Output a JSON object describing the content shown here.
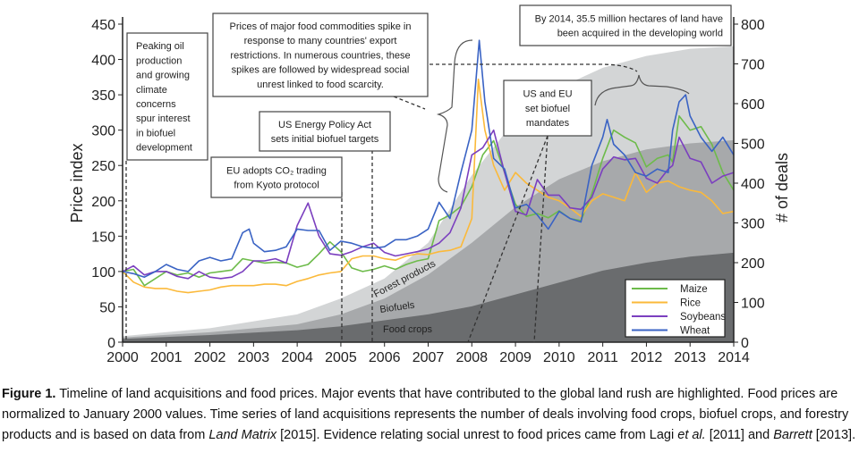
{
  "chart_data": {
    "type": "line",
    "ylabel": "Price index",
    "y2label": "# of deals",
    "xlim": [
      2000,
      2014
    ],
    "ylim": [
      0,
      450
    ],
    "y2lim": [
      0,
      800
    ],
    "x_ticks": [
      "2000",
      "2001",
      "2002",
      "2003",
      "2004",
      "2005",
      "2006",
      "2007",
      "2008",
      "2009",
      "2010",
      "2011",
      "2012",
      "2013",
      "2014"
    ],
    "y_ticks": [
      "0",
      "50",
      "100",
      "150",
      "200",
      "250",
      "300",
      "350",
      "400",
      "450"
    ],
    "y2_ticks": [
      "0",
      "100",
      "200",
      "300",
      "400",
      "500",
      "600",
      "700",
      "800"
    ],
    "grid": false,
    "legend_placement": "bottom-right",
    "areas": [
      {
        "name": "Forest products",
        "color": "#d3d5d6",
        "x": [
          2000,
          2002,
          2004,
          2005,
          2006,
          2007,
          2008,
          2009,
          2010,
          2011,
          2012,
          2013,
          2014
        ],
        "y2": [
          15,
          35,
          70,
          110,
          160,
          250,
          420,
          560,
          640,
          690,
          720,
          738,
          744
        ]
      },
      {
        "name": "Biofuels",
        "color": "#a7a9ab",
        "x": [
          2000,
          2002,
          2004,
          2005,
          2006,
          2007,
          2008,
          2009,
          2010,
          2011,
          2012,
          2013,
          2014
        ],
        "y2": [
          12,
          25,
          45,
          70,
          110,
          170,
          250,
          340,
          410,
          455,
          485,
          500,
          508
        ]
      },
      {
        "name": "Food crops",
        "color": "#6a6c6e",
        "x": [
          2000,
          2002,
          2004,
          2005,
          2006,
          2007,
          2008,
          2009,
          2010,
          2011,
          2012,
          2013,
          2014
        ],
        "y2": [
          8,
          18,
          30,
          40,
          55,
          70,
          90,
          120,
          150,
          180,
          200,
          215,
          225
        ]
      }
    ],
    "series": [
      {
        "name": "Maize",
        "color": "#6dbb4a",
        "x": [
          2000,
          2000.25,
          2000.5,
          2000.75,
          2001,
          2001.25,
          2001.5,
          2001.75,
          2002,
          2002.25,
          2002.5,
          2002.75,
          2003,
          2003.25,
          2003.5,
          2003.75,
          2004,
          2004.25,
          2004.5,
          2004.75,
          2005,
          2005.25,
          2005.5,
          2005.75,
          2006,
          2006.25,
          2006.5,
          2006.75,
          2007,
          2007.25,
          2007.5,
          2007.75,
          2008,
          2008.25,
          2008.5,
          2008.75,
          2009,
          2009.25,
          2009.5,
          2009.75,
          2010,
          2010.25,
          2010.5,
          2010.75,
          2011,
          2011.25,
          2011.5,
          2011.75,
          2012,
          2012.25,
          2012.5,
          2012.6,
          2012.75,
          2013,
          2013.25,
          2013.5,
          2013.75,
          2014
        ],
        "y": [
          100,
          103,
          80,
          90,
          100,
          95,
          98,
          92,
          98,
          100,
          102,
          118,
          115,
          112,
          113,
          112,
          106,
          110,
          125,
          142,
          128,
          105,
          100,
          103,
          108,
          103,
          110,
          115,
          118,
          172,
          180,
          192,
          220,
          265,
          285,
          240,
          195,
          178,
          182,
          176,
          186,
          175,
          172,
          210,
          260,
          300,
          290,
          282,
          248,
          260,
          265,
          255,
          320,
          300,
          305,
          280,
          240,
          215
        ]
      },
      {
        "name": "Rice",
        "color": "#fbb93a",
        "x": [
          2000,
          2000.25,
          2000.5,
          2000.75,
          2001,
          2001.25,
          2001.5,
          2001.75,
          2002,
          2002.25,
          2002.5,
          2002.75,
          2003,
          2003.25,
          2003.5,
          2003.75,
          2004,
          2004.25,
          2004.5,
          2004.75,
          2005,
          2005.25,
          2005.5,
          2005.75,
          2006,
          2006.25,
          2006.5,
          2006.75,
          2007,
          2007.25,
          2007.5,
          2007.75,
          2008,
          2008.15,
          2008.3,
          2008.5,
          2008.75,
          2009,
          2009.25,
          2009.5,
          2009.75,
          2010,
          2010.25,
          2010.5,
          2010.75,
          2011,
          2011.25,
          2011.5,
          2011.75,
          2012,
          2012.25,
          2012.5,
          2012.75,
          2013,
          2013.25,
          2013.5,
          2013.75,
          2014
        ],
        "y": [
          100,
          85,
          78,
          76,
          76,
          72,
          70,
          72,
          74,
          78,
          80,
          80,
          80,
          82,
          82,
          80,
          86,
          90,
          95,
          98,
          100,
          118,
          122,
          122,
          118,
          116,
          122,
          125,
          124,
          128,
          130,
          135,
          175,
          372,
          300,
          250,
          215,
          240,
          225,
          215,
          205,
          200,
          190,
          178,
          200,
          210,
          205,
          200,
          240,
          212,
          225,
          228,
          220,
          215,
          212,
          200,
          182,
          185
        ]
      },
      {
        "name": "Soybeans",
        "color": "#7b3fbf",
        "x": [
          2000,
          2000.25,
          2000.5,
          2000.75,
          2001,
          2001.25,
          2001.5,
          2001.75,
          2002,
          2002.25,
          2002.5,
          2002.75,
          2003,
          2003.25,
          2003.5,
          2003.75,
          2004,
          2004.25,
          2004.5,
          2004.75,
          2005,
          2005.25,
          2005.5,
          2005.75,
          2006,
          2006.25,
          2006.5,
          2006.75,
          2007,
          2007.25,
          2007.5,
          2007.75,
          2008,
          2008.25,
          2008.5,
          2008.75,
          2009,
          2009.25,
          2009.5,
          2009.75,
          2010,
          2010.25,
          2010.5,
          2010.75,
          2011,
          2011.25,
          2011.5,
          2011.75,
          2012,
          2012.25,
          2012.5,
          2012.6,
          2012.75,
          2013,
          2013.25,
          2013.5,
          2013.75,
          2014
        ],
        "y": [
          100,
          108,
          95,
          100,
          100,
          93,
          90,
          100,
          92,
          90,
          92,
          100,
          115,
          115,
          118,
          112,
          165,
          197,
          150,
          125,
          123,
          128,
          135,
          140,
          127,
          122,
          125,
          128,
          132,
          140,
          155,
          190,
          265,
          275,
          300,
          240,
          185,
          180,
          230,
          208,
          208,
          190,
          188,
          205,
          245,
          262,
          258,
          260,
          232,
          225,
          245,
          250,
          290,
          260,
          255,
          225,
          235,
          240
        ]
      },
      {
        "name": "Wheat",
        "color": "#3a63c4",
        "x": [
          2000,
          2000.25,
          2000.5,
          2000.75,
          2001,
          2001.25,
          2001.5,
          2001.75,
          2002,
          2002.25,
          2002.5,
          2002.75,
          2002.9,
          2003,
          2003.25,
          2003.5,
          2003.75,
          2004,
          2004.25,
          2004.5,
          2004.75,
          2005,
          2005.25,
          2005.5,
          2005.75,
          2006,
          2006.25,
          2006.5,
          2006.75,
          2007,
          2007.25,
          2007.5,
          2007.75,
          2008,
          2008.17,
          2008.3,
          2008.5,
          2008.75,
          2009,
          2009.25,
          2009.5,
          2009.75,
          2010,
          2010.25,
          2010.5,
          2010.75,
          2011,
          2011.1,
          2011.25,
          2011.5,
          2011.75,
          2012,
          2012.25,
          2012.5,
          2012.6,
          2012.75,
          2012.9,
          2013,
          2013.25,
          2013.5,
          2013.75,
          2014
        ],
        "y": [
          100,
          97,
          92,
          100,
          110,
          103,
          100,
          115,
          120,
          115,
          118,
          155,
          160,
          140,
          128,
          130,
          135,
          160,
          158,
          158,
          130,
          143,
          140,
          135,
          133,
          135,
          145,
          145,
          150,
          160,
          198,
          175,
          240,
          300,
          427,
          340,
          260,
          245,
          190,
          195,
          180,
          160,
          185,
          175,
          170,
          250,
          290,
          315,
          280,
          265,
          240,
          235,
          245,
          240,
          300,
          340,
          350,
          320,
          290,
          270,
          290,
          265
        ]
      }
    ],
    "annotations": {
      "oil": [
        "Peaking oil",
        "production",
        "and growing",
        "climate",
        "concerns",
        "spur interest",
        "in biofuel",
        "development"
      ],
      "eu_co2": [
        "EU adopts CO₂ trading",
        "from Kyoto protocol"
      ],
      "us_energy": [
        "US Energy Policy Act",
        "sets initial biofuel targets"
      ],
      "spike": [
        "Prices of major food commodities spike in",
        "response to many countries' export",
        "restrictions. In numerous countries, these",
        "spikes are followed by widespread social",
        "unrest linked to food scarcity."
      ],
      "mandates": [
        "US and EU",
        "set biofuel",
        "mandates"
      ],
      "land": [
        "By 2014, 35.5 million hectares of land have",
        "been acquired in the developing world"
      ]
    }
  },
  "caption": {
    "label": "Figure 1.",
    "part1": " Timeline of land acquisitions and food prices. Major events that have contributed to the global land rush are highlighted. Food prices are normalized to January 2000 values. Time series of land acquisitions represents the number of deals involving food crops, biofuel crops, and forestry products and is based on data from ",
    "source1": "Land Matrix",
    "part2": " [2015]. Evidence relating social unrest to food prices came from Lagi ",
    "etal": "et al.",
    "part3": " [2011] and ",
    "source2": "Barrett",
    "part4": " [2013]."
  }
}
